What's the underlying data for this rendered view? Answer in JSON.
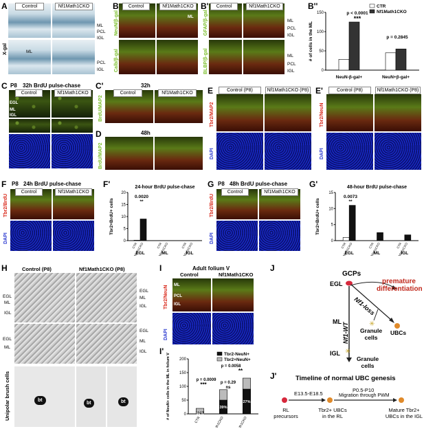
{
  "panels": {
    "A": {
      "label": "A",
      "col_control": "Control",
      "col_cko": "Nf1Math1CKO",
      "stain": "X-gal",
      "layers_top": [
        "ML",
        "PCL",
        "IGL"
      ],
      "layers_bottom": [
        "ML",
        "PCL",
        "IGL"
      ]
    },
    "B": {
      "label": "B",
      "col_control": "Control",
      "col_cko": "Nf1Math1CKO",
      "stain_top": "NeuN/β-gal",
      "stain_bottom": "Calb/β-gal",
      "layers": [
        "ML",
        "PCL",
        "IGL"
      ]
    },
    "B1": {
      "label": "B'",
      "col_control": "Control",
      "col_cko": "Nf1Math1CKO",
      "stain_top": "GFAP/β-gal",
      "stain_bottom": "BLBP/β-gal",
      "layers": [
        "ML",
        "PCL",
        "IGL"
      ]
    },
    "B2": {
      "label": "B''"
    },
    "C": {
      "label": "C",
      "title": "P8",
      "subtitle": "32h BrdU pulse-chase",
      "col_control": "Control",
      "col_cko": "Nf1Math1CKO",
      "layers": [
        "EGL",
        "ML",
        "IGL"
      ]
    },
    "C1": {
      "label": "C'",
      "title": "32h",
      "col_control": "Control",
      "col_cko": "Nf1Math1CKO",
      "stain": "BrdU/MAP2"
    },
    "D": {
      "label": "D",
      "title": "48h",
      "stain": "BrdU/MAP2"
    },
    "E": {
      "label": "E",
      "col_control": "Control (P8)",
      "col_cko": "Nf1Math1CKO (P8)",
      "stain_top": "Tbr2/MAP2",
      "stain_bottom": "DAPI"
    },
    "E1": {
      "label": "E'",
      "col_control": "Control (P8)",
      "col_cko": "Nf1Math1CKO (P8)",
      "stain_top": "Tbr2/NeuN",
      "stain_bottom": "DAPI"
    },
    "F": {
      "label": "F",
      "title": "P8",
      "subtitle": "24h BrdU pulse-chase",
      "col_control": "Control",
      "col_cko": "Nf1Math1CKO",
      "stain_top": "Tbr2/BrdU",
      "stain_bottom": "DAPI"
    },
    "F1": {
      "label": "F'"
    },
    "G": {
      "label": "G",
      "title": "P8",
      "subtitle": "48h BrdU pulse-chase",
      "col_control": "Control",
      "col_cko": "Nf1Math1CKO",
      "stain_top": "Tbr2/BrdU",
      "stain_bottom": "DAPI"
    },
    "G1": {
      "label": "G'"
    },
    "H": {
      "label": "H",
      "col_control": "Control (P8)",
      "col_cko": "Nf1Math1CKO (P8)",
      "layers": [
        "EGL",
        "ML",
        "IGL"
      ],
      "side_label": "Unipolar brush cells",
      "bt": "bt"
    },
    "I": {
      "label": "I",
      "title": "Adult folium V",
      "col_control": "Control",
      "col_cko": "Nf1Math1CKO",
      "stain_top": "Tbr2/NeuN",
      "stain_bottom": "DAPI",
      "layers": [
        "ML",
        "PCL",
        "IGL"
      ]
    },
    "I1": {
      "label": "I'"
    },
    "J": {
      "label": "J",
      "gcp": "GCPs",
      "egl": "EGL",
      "ml": "ML",
      "igl": "IGL",
      "premature": "premature differentiation",
      "nf1_loss": "Nf1-loss",
      "nf1_wt": "Nf1-WT",
      "granule_cells_1": "Granule cells",
      "ubcs": "UBCs",
      "granule_cells_2": "Granule cells"
    },
    "J1": {
      "label": "J'",
      "title": "Timeline of normal UBC genesis",
      "t1": "E13.5-E18.5",
      "t2": "P0.5-P10",
      "t2b": "Migration through PWM",
      "n1": "RL precursors",
      "n2": "Tbr2+ UBCs in the RL",
      "n3": "Mature Tbr2+ UBCs in the IGL"
    }
  },
  "chart_data": [
    {
      "id": "B2",
      "type": "bar",
      "ylabel": "# of cells in the ML",
      "categories": [
        "NeuN-β-gal+",
        "NeuN+β-gal+"
      ],
      "series": [
        {
          "name": "CTR",
          "values": [
            28,
            45
          ]
        },
        {
          "name": "Nf1Math1CKO",
          "values": [
            125,
            55
          ]
        }
      ],
      "ylim": [
        0,
        150
      ],
      "yticks": [
        0,
        50,
        100,
        150
      ],
      "annotations": [
        "p < 0.0001",
        "***",
        "p = 0.2845"
      ],
      "legend": "top-right"
    },
    {
      "id": "F1",
      "type": "bar",
      "title": "24-hour BrdU pulse-chase",
      "ylabel": "Tbr2+BrdU+ cells",
      "categories": [
        "EGL",
        "ML",
        "IGL"
      ],
      "series": [
        {
          "name": "CTR",
          "values": [
            0.2,
            0,
            0
          ]
        },
        {
          "name": "Nf1Math1CKO",
          "values": [
            9,
            0,
            0
          ]
        }
      ],
      "ylim": [
        0,
        20
      ],
      "yticks": [
        0,
        5,
        10,
        15,
        20
      ],
      "annotations": [
        "0.0020",
        "**"
      ],
      "tick_labels": [
        "CTR",
        "Nf1Math1CKO"
      ]
    },
    {
      "id": "G1",
      "type": "bar",
      "title": "48-hour BrdU pulse-chase",
      "ylabel": "Tbr2+BrdU+ cells",
      "categories": [
        "EGL",
        "ML",
        "IGL"
      ],
      "series": [
        {
          "name": "CTR",
          "values": [
            1,
            0,
            0
          ]
        },
        {
          "name": "Nf1Math1CKO",
          "values": [
            11,
            2.5,
            1.8
          ]
        }
      ],
      "ylim": [
        0,
        15
      ],
      "yticks": [
        0,
        5,
        10,
        15
      ],
      "annotations": [
        "0.0073",
        "**"
      ],
      "tick_labels": [
        "CTR",
        "Nf1Math1CKO"
      ]
    },
    {
      "id": "I1",
      "type": "bar",
      "ylabel": "# of NeuN+ cells in the ML in folium V",
      "categories": [
        "CTR",
        "Nf1Math1CKO",
        "Nf1Math1CKO"
      ],
      "series": [
        {
          "name": "Tbr2-NeuN+",
          "values": [
            8,
            50,
            90
          ]
        },
        {
          "name": "Tbr2+NeuN+",
          "values": [
            12,
            38,
            40
          ]
        }
      ],
      "ylim": [
        0,
        200
      ],
      "yticks": [
        0,
        50,
        100,
        150,
        200
      ],
      "inside_labels": [
        "60%",
        "39%",
        "27%"
      ],
      "annotations": [
        "p = 0.0058",
        "**",
        "p = 0.0009",
        "***",
        "p = 0.29",
        "ns"
      ],
      "legend": "top-right"
    }
  ]
}
